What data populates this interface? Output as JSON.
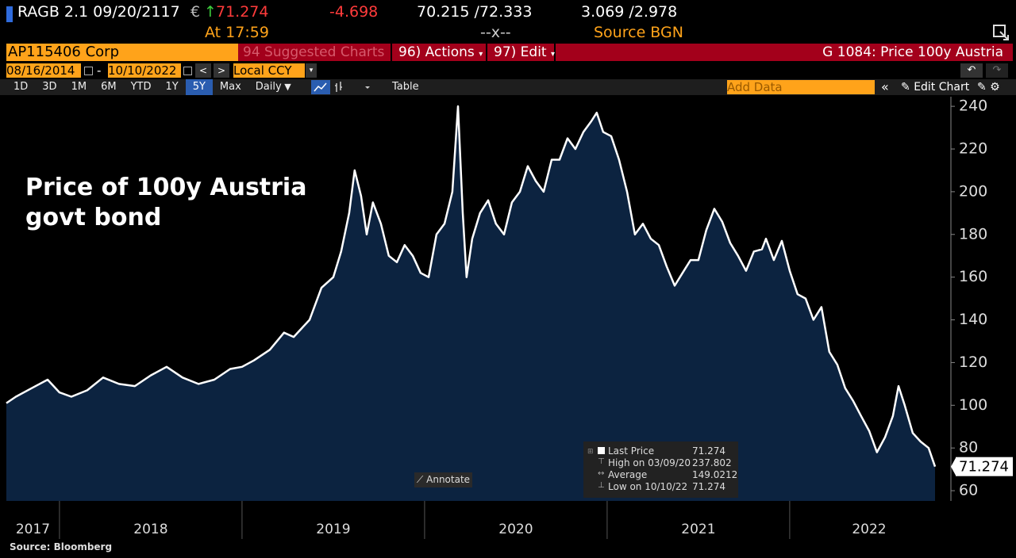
{
  "header": {
    "ticker": "RAGB 2.1 09/20/2117",
    "currency": "€",
    "arrow": "↑",
    "last": "71.274",
    "change": "-4.698",
    "bid_ask": "70.215 /72.333",
    "yields": "3.069 /2.978",
    "time": "At 17:59",
    "volume": "--x--",
    "source": "Source BGN"
  },
  "command_bar": {
    "security": "AP115406 Corp",
    "suggested": "94 Suggested Charts",
    "actions": "96) Actions",
    "edit": "97) Edit",
    "function": "G 1084: Price 100y Austria"
  },
  "date_bar": {
    "start": "08/16/2014",
    "dash": "-",
    "end": "10/10/2022",
    "currency": "Local CCY"
  },
  "toolbar": {
    "periods": [
      "1D",
      "3D",
      "1M",
      "6M",
      "YTD",
      "1Y",
      "5Y",
      "Max",
      "Daily"
    ],
    "selected": "5Y",
    "table": "Table",
    "add_data": "Add Data",
    "edit_chart": "Edit Chart"
  },
  "chart_data": {
    "type": "area",
    "annotation": "Price of 100y Austria govt bond",
    "source": "Source: Bloomberg",
    "annotate_button": "Annotate",
    "color": "#ffffff",
    "fill_color": "#0c2340",
    "grid": false,
    "xlim": [
      2017.709,
      2022.87
    ],
    "ylim": [
      55.2,
      244.5
    ],
    "xticks": [
      2017,
      2018,
      2019,
      2020,
      2021,
      2022
    ],
    "yticks": [
      60,
      80,
      100,
      120,
      140,
      160,
      180,
      200,
      220,
      240
    ],
    "series": [
      {
        "name": "Last Price",
        "color": "#ffffff",
        "x": [
          2017.709,
          2017.761,
          2017.848,
          2017.935,
          2018.0,
          2018.065,
          2018.152,
          2018.239,
          2018.326,
          2018.413,
          2018.5,
          2018.587,
          2018.674,
          2018.761,
          2018.848,
          2018.935,
          2019.0,
          2019.065,
          2019.152,
          2019.23,
          2019.283,
          2019.37,
          2019.435,
          2019.5,
          2019.543,
          2019.587,
          2019.617,
          2019.652,
          2019.683,
          2019.717,
          2019.761,
          2019.804,
          2019.848,
          2019.891,
          2019.935,
          2019.978,
          2020.022,
          2020.065,
          2020.109,
          2020.152,
          2020.183,
          2020.209,
          2020.23,
          2020.261,
          2020.304,
          2020.348,
          2020.391,
          2020.435,
          2020.478,
          2020.522,
          2020.565,
          2020.609,
          2020.652,
          2020.696,
          2020.739,
          2020.783,
          2020.826,
          2020.87,
          2020.913,
          2020.943,
          2020.978,
          2021.022,
          2021.065,
          2021.109,
          2021.152,
          2021.196,
          2021.239,
          2021.283,
          2021.326,
          2021.37,
          2021.413,
          2021.457,
          2021.5,
          2021.543,
          2021.587,
          2021.63,
          2021.674,
          2021.717,
          2021.761,
          2021.804,
          2021.848,
          2021.87,
          2021.913,
          2021.957,
          2022.0,
          2022.043,
          2022.087,
          2022.13,
          2022.174,
          2022.217,
          2022.261,
          2022.304,
          2022.348,
          2022.391,
          2022.435,
          2022.478,
          2022.522,
          2022.565,
          2022.596,
          2022.63,
          2022.674,
          2022.717,
          2022.761,
          2022.796
        ],
        "values": [
          101,
          104,
          108,
          112,
          106,
          104,
          107,
          113,
          110,
          109,
          114,
          118,
          113,
          110,
          112,
          117,
          118,
          121,
          126,
          134,
          132,
          140,
          155,
          160,
          172,
          190,
          210,
          198,
          180,
          195,
          185,
          170,
          167,
          175,
          170,
          162,
          160,
          180,
          185,
          200,
          240,
          190,
          160,
          178,
          190,
          196,
          185,
          180,
          195,
          200,
          212,
          205,
          200,
          215,
          215,
          225,
          220,
          228,
          233,
          237,
          228,
          226,
          215,
          200,
          180,
          185,
          178,
          175,
          165,
          156,
          162,
          168,
          168,
          182,
          192,
          186,
          176,
          170,
          163,
          172,
          173,
          178,
          168,
          177,
          163,
          152,
          150,
          140,
          146,
          125,
          119,
          108,
          102,
          95,
          88,
          78,
          85,
          95,
          109,
          100,
          87,
          83,
          80,
          71.274
        ],
        "value_labels": {
          "103": "71.274"
        }
      }
    ],
    "legend_box": [
      {
        "label": "High on 03/09/20",
        "value": "237.802"
      },
      {
        "label": "Average",
        "value": "149.0212"
      },
      {
        "label": "Low on 10/10/22",
        "value": "71.274"
      }
    ],
    "last_value_label": "71.274"
  }
}
